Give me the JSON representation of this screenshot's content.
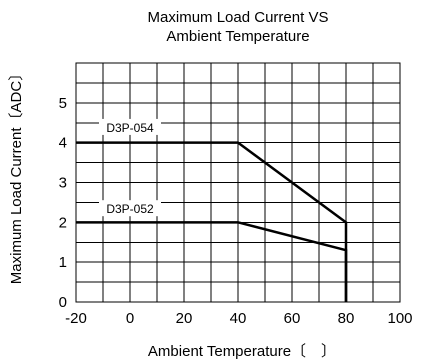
{
  "chart_data": {
    "type": "line",
    "title": [
      "Maximum Load Current VS",
      "Ambient Temperature"
    ],
    "xlabel": "Ambient Temperature〔　〕",
    "ylabel": "Maximum Load Current〔ADC〕",
    "xlim": [
      -20,
      100
    ],
    "ylim": [
      0,
      6
    ],
    "x_grid_step": 10,
    "y_grid_step": 0.5,
    "grid": true,
    "x_ticks": [
      -20,
      0,
      20,
      40,
      60,
      80,
      100
    ],
    "x_tick_labels": [
      "-20",
      "0",
      "20",
      "40",
      "60",
      "80",
      "100"
    ],
    "y_ticks": [
      0,
      1,
      2,
      3,
      4,
      5
    ],
    "y_tick_labels": [
      "0",
      "1",
      "2",
      "3",
      "4",
      "5"
    ],
    "series": [
      {
        "name": "D3P-054",
        "label_at": {
          "x": 0,
          "y": 4.37
        },
        "points": [
          [
            -20,
            4
          ],
          [
            40,
            4
          ],
          [
            80,
            2
          ],
          [
            80,
            0
          ]
        ]
      },
      {
        "name": "D3P-052",
        "label_at": {
          "x": 0,
          "y": 2.33
        },
        "points": [
          [
            -20,
            2
          ],
          [
            40,
            2
          ],
          [
            80,
            1.3
          ],
          [
            80,
            0
          ]
        ]
      }
    ],
    "line_color": "#000000",
    "grid_color": "#000000",
    "background": "#ffffff"
  }
}
